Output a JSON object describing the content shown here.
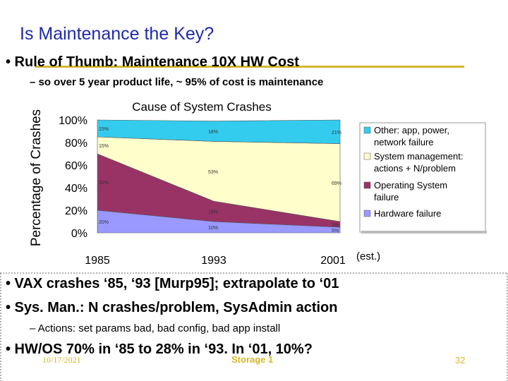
{
  "slide": {
    "title": "Is Maintenance the Key?",
    "bullet1": "• Rule of Thumb: Maintenance 10X HW Cost",
    "sub1": "– so over 5 year product life, ~ 95% of cost is maintenance",
    "bullet2": "• VAX crashes ‘85, ‘93 [Murp95]; extrapolate to ‘01",
    "bullet3": "• Sys. Man.: N crashes/problem, SysAdmin action",
    "sub2": "– Actions: set params bad, bad config, bad app install",
    "bullet4": "• HW/OS 70% in ‘85 to 28% in ‘93. In ‘01, 10%?"
  },
  "footer": {
    "date": "10/17/2021",
    "title": "Storage 1",
    "page": "32"
  },
  "colors": {
    "title": "#1f2aa8",
    "accent_rule": "#d7b728",
    "footer": "#d7b728",
    "hardware": "#9999ff",
    "os": "#993366",
    "sysmgmt": "#ffffcc",
    "other": "#33ccee"
  },
  "chart_data": {
    "type": "area",
    "stacked": true,
    "title": "Cause of System Crashes",
    "ylabel": "Percentage of Crashes",
    "xlabel": "",
    "x": [
      "1985",
      "1993",
      "2001"
    ],
    "x_annotation": "(est.)",
    "ylim": [
      0,
      100
    ],
    "yticks": [
      "0%",
      "20%",
      "40%",
      "60%",
      "80%",
      "100%"
    ],
    "legend_position": "right",
    "series": [
      {
        "name": "Hardware failure",
        "values": [
          20,
          10,
          5
        ],
        "labels": [
          "20%",
          "10%",
          "5%"
        ],
        "color": "#9999ff"
      },
      {
        "name": "Operating System failure",
        "values": [
          50,
          18,
          5
        ],
        "labels": [
          "50%",
          "18%",
          "5%"
        ],
        "color": "#993366"
      },
      {
        "name": "System management: actions + N/problem",
        "values": [
          15,
          53,
          69
        ],
        "labels": [
          "15%",
          "53%",
          "69%"
        ],
        "color": "#ffffcc"
      },
      {
        "name": "Other: app, power, network failure",
        "values": [
          15,
          18,
          21
        ],
        "labels": [
          "15%",
          "18%",
          "21%"
        ],
        "color": "#33ccee"
      }
    ],
    "legend": [
      {
        "line1": "Other: app, power,",
        "line2": "network failure",
        "color": "#33ccee"
      },
      {
        "line1": "System management:",
        "line2": "actions + N/problem",
        "color": "#ffffcc"
      },
      {
        "line1": "Operating System",
        "line2": "failure",
        "color": "#993366"
      },
      {
        "line1": "Hardware failure",
        "line2": "",
        "color": "#9999ff"
      }
    ]
  }
}
